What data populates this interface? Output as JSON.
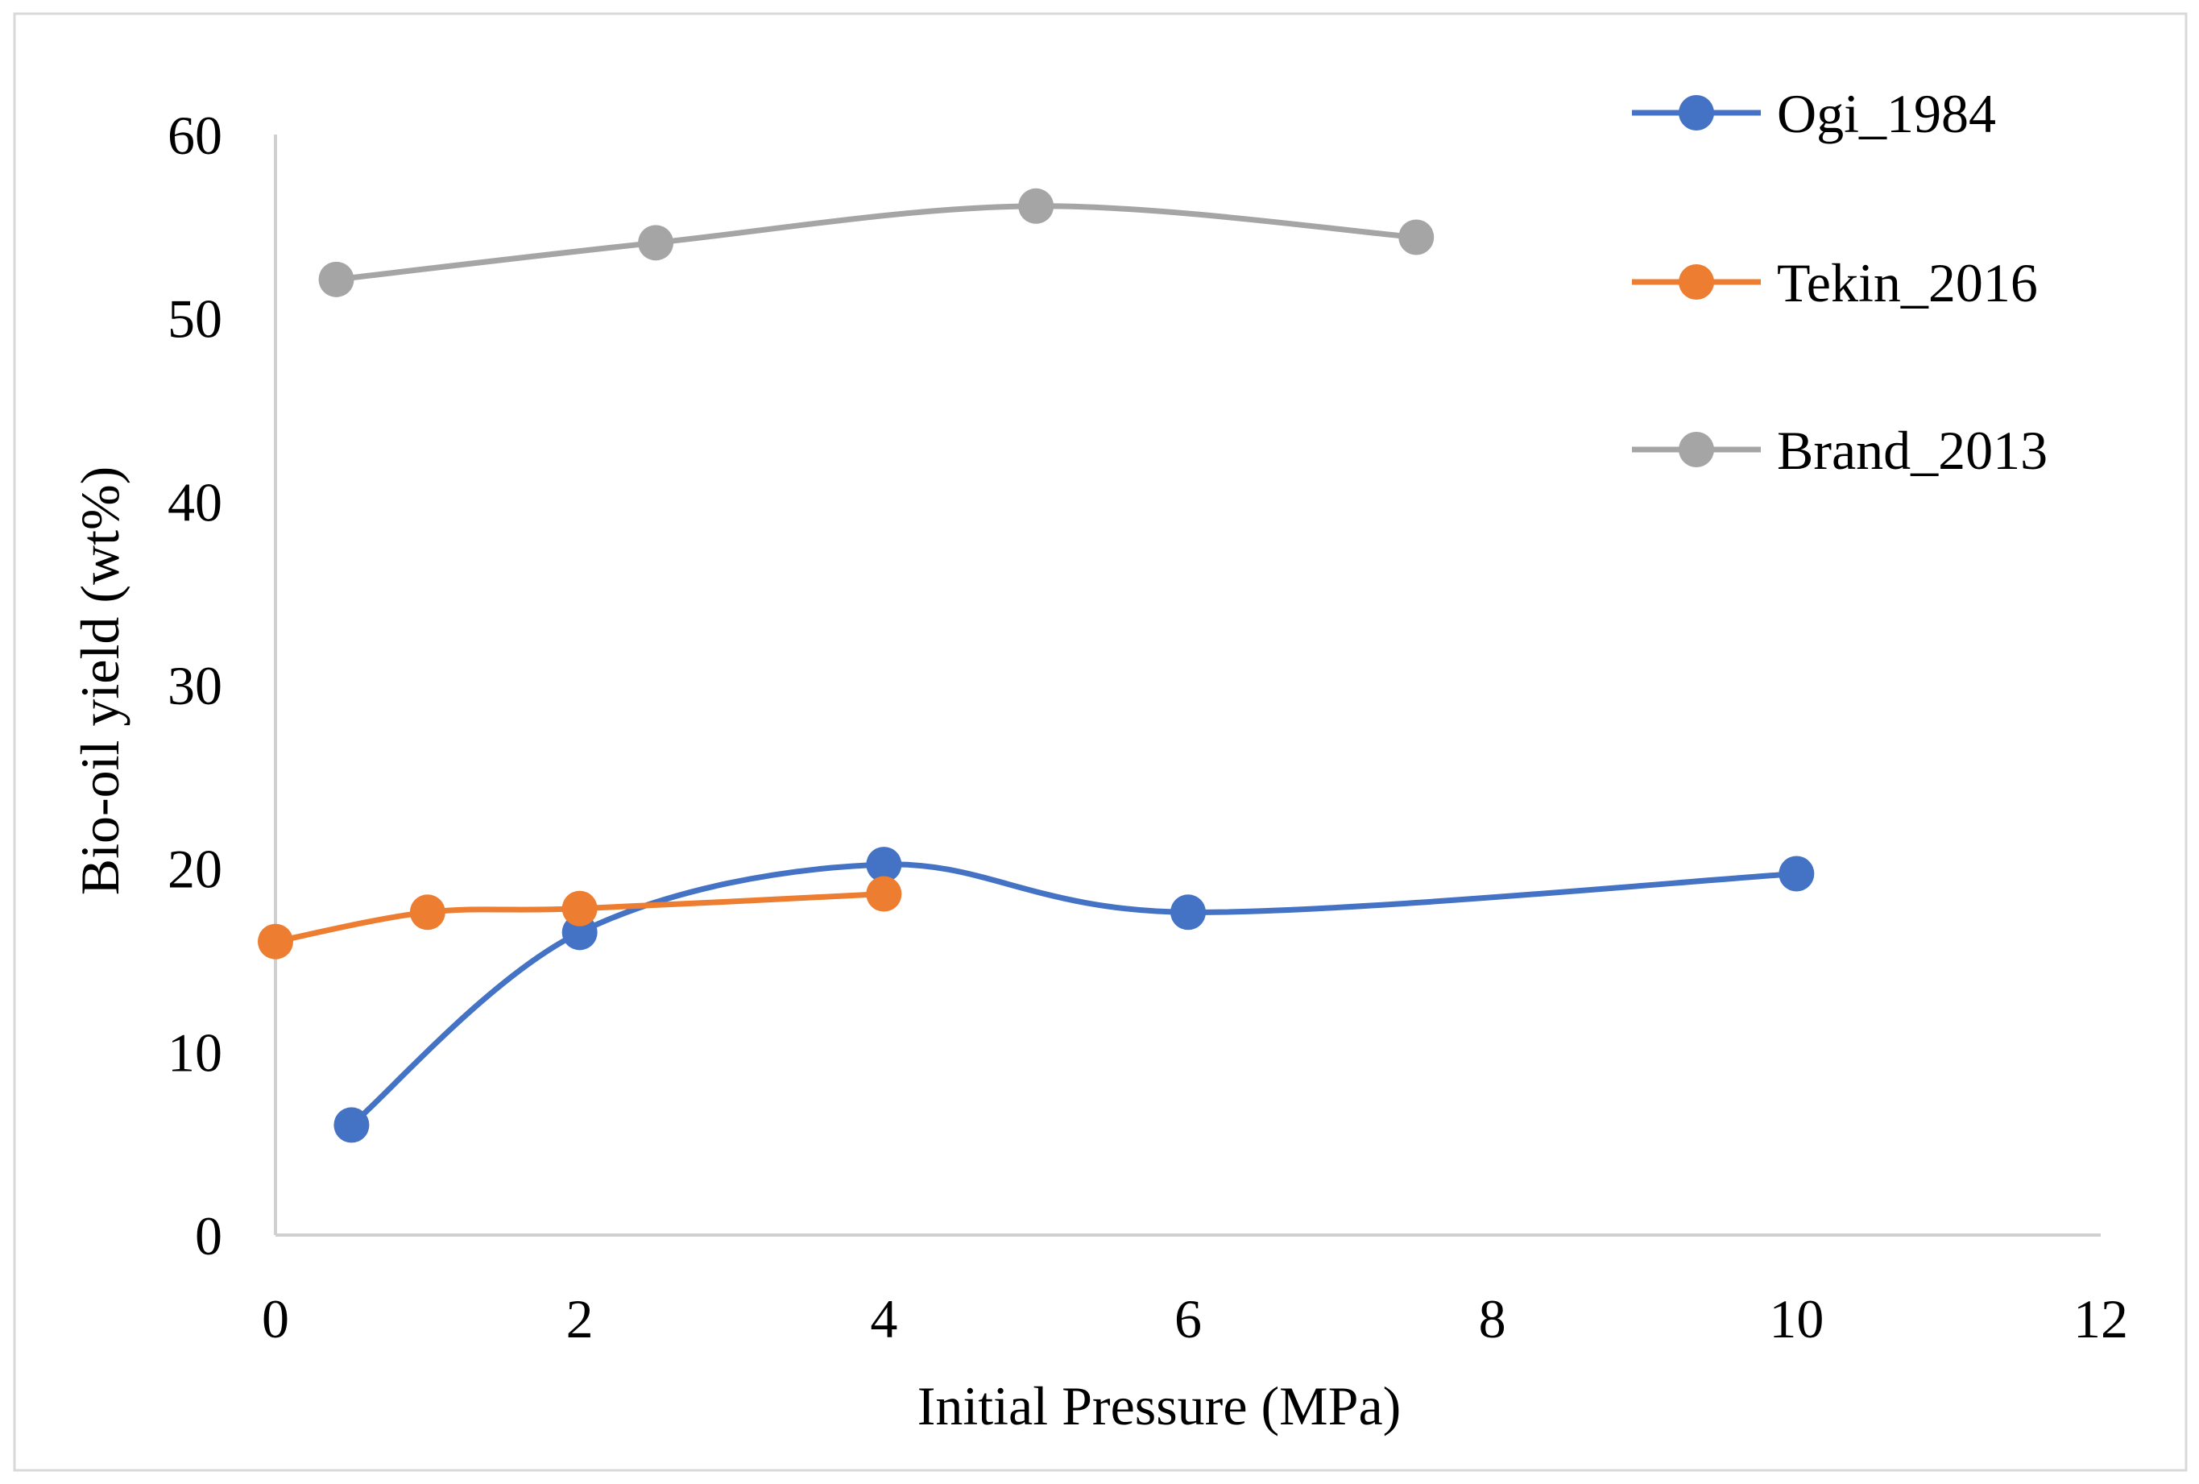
{
  "chart_data": {
    "type": "line",
    "title": "",
    "xlabel": "Initial Pressure (MPa)",
    "ylabel": "Bio-oil yield (wt%)",
    "xlim": [
      0,
      12
    ],
    "ylim": [
      0,
      60
    ],
    "xticks": [
      0,
      2,
      4,
      6,
      8,
      10,
      12
    ],
    "yticks": [
      0,
      10,
      20,
      30,
      40,
      50,
      60
    ],
    "grid": false,
    "smooth": true,
    "legend_position": "top-right",
    "series": [
      {
        "name": "Ogi_1984",
        "color": "#4472C4",
        "points": [
          [
            0.5,
            6.0
          ],
          [
            2,
            16.5
          ],
          [
            4,
            20.2
          ],
          [
            6,
            17.6
          ],
          [
            10,
            19.7
          ]
        ]
      },
      {
        "name": "Tekin_2016",
        "color": "#ED7D31",
        "points": [
          [
            0,
            16.0
          ],
          [
            1,
            17.6
          ],
          [
            2,
            17.8
          ],
          [
            4,
            18.6
          ]
        ]
      },
      {
        "name": "Brand_2013",
        "color": "#A5A5A5",
        "points": [
          [
            0.4,
            52.1
          ],
          [
            2.5,
            54.1
          ],
          [
            5,
            56.1
          ],
          [
            7.5,
            54.4
          ]
        ]
      }
    ]
  },
  "colors": {
    "axis": "#D0D0D0",
    "frame_border": "#D0D0D0",
    "background": "#FFFFFF"
  }
}
